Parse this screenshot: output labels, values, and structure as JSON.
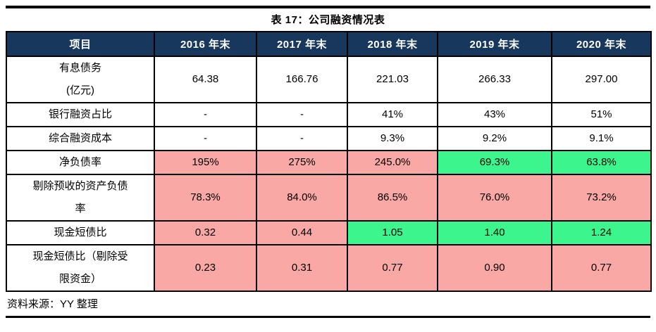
{
  "page": {
    "title": "表 17：公司融资情况表",
    "source": "资料来源：YY 整理"
  },
  "table": {
    "columns": [
      "项目",
      "2016 年末",
      "2017 年末",
      "2018 年末",
      "2019 年末",
      "2020 年末"
    ],
    "rows": [
      {
        "label": "有息债务\n(亿元)",
        "values": [
          "64.38",
          "166.76",
          "221.03",
          "266.33",
          "297.00"
        ],
        "fills": [
          "none",
          "none",
          "none",
          "none",
          "none"
        ]
      },
      {
        "label": "银行融资占比",
        "values": [
          "-",
          "-",
          "41%",
          "43%",
          "51%"
        ],
        "fills": [
          "none",
          "none",
          "none",
          "none",
          "none"
        ]
      },
      {
        "label": "综合融资成本",
        "values": [
          "-",
          "-",
          "9.3%",
          "9.2%",
          "9.1%"
        ],
        "fills": [
          "none",
          "none",
          "none",
          "none",
          "none"
        ]
      },
      {
        "label": "净负债率",
        "values": [
          "195%",
          "275%",
          "245.0%",
          "69.3%",
          "63.8%"
        ],
        "fills": [
          "red",
          "red",
          "red",
          "green",
          "green"
        ]
      },
      {
        "label": "剔除预收的资产负债\n率",
        "values": [
          "78.3%",
          "84.0%",
          "86.5%",
          "76.0%",
          "73.2%"
        ],
        "fills": [
          "red",
          "red",
          "red",
          "red",
          "red"
        ]
      },
      {
        "label": "现金短债比",
        "values": [
          "0.32",
          "0.44",
          "1.05",
          "1.40",
          "1.24"
        ],
        "fills": [
          "red",
          "red",
          "green",
          "green",
          "green"
        ]
      },
      {
        "label": "现金短债比（剔除受\n限资金）",
        "values": [
          "0.23",
          "0.31",
          "0.77",
          "0.90",
          "0.77"
        ],
        "fills": [
          "red",
          "red",
          "red",
          "red",
          "red"
        ]
      }
    ]
  },
  "colors": {
    "header_bg": "#17375D",
    "header_text": "#FFFFFF",
    "highlight_red": "#F9A8A5",
    "highlight_green": "#3CF58D",
    "rule_black": "#000000"
  }
}
